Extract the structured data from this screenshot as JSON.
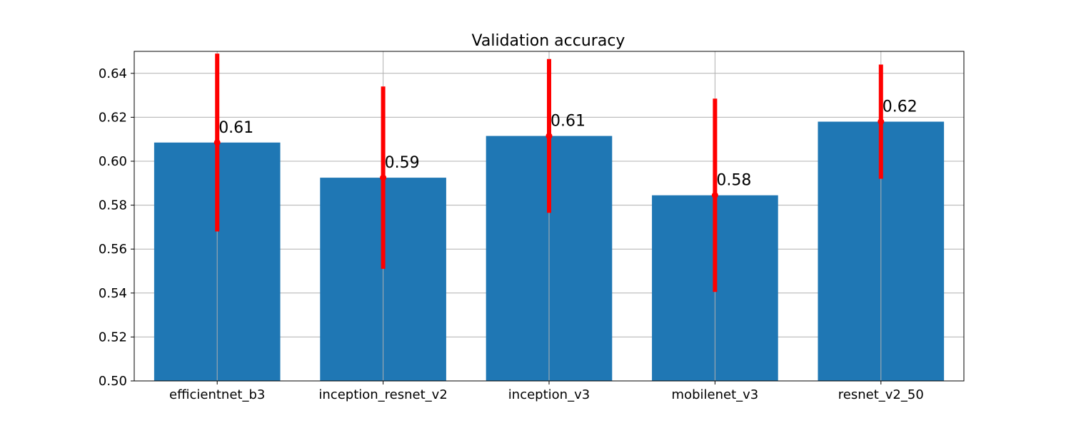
{
  "chart_data": {
    "type": "bar",
    "title": "Validation accuracy",
    "xlabel": "",
    "ylabel": "",
    "categories": [
      "efficientnet_b3",
      "inception_resnet_v2",
      "inception_v3",
      "mobilenet_v3",
      "resnet_v2_50"
    ],
    "values": [
      0.6085,
      0.5925,
      0.6115,
      0.5845,
      0.618
    ],
    "error": [
      0.0405,
      0.0415,
      0.035,
      0.044,
      0.026
    ],
    "data_labels": [
      "0.61",
      "0.59",
      "0.61",
      "0.58",
      "0.62"
    ],
    "ylim": [
      0.5,
      0.65
    ],
    "yticks": [
      0.5,
      0.52,
      0.54,
      0.56,
      0.58,
      0.6,
      0.62,
      0.64
    ],
    "ytick_labels": [
      "0.50",
      "0.52",
      "0.54",
      "0.56",
      "0.58",
      "0.60",
      "0.62",
      "0.64"
    ],
    "grid": true,
    "bar_color": "#1f77b4",
    "error_color": "#ff0000"
  }
}
